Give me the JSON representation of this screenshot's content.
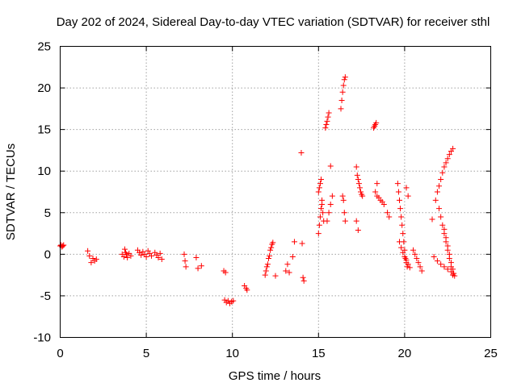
{
  "chart_data": {
    "type": "scatter",
    "title": "Day 202 of 2024, Sidereal Day-to-day VTEC variation (SDTVAR) for receiver sthl",
    "xlabel": "GPS time / hours",
    "ylabel": "SDTVAR / TECUs",
    "xlim": [
      0,
      25
    ],
    "ylim": [
      -10,
      25
    ],
    "x_ticks": [
      0,
      5,
      10,
      15,
      20,
      25
    ],
    "x_tick_labels": [
      "0",
      "5",
      "10",
      "15",
      "20",
      "25"
    ],
    "y_ticks": [
      -10,
      -5,
      0,
      5,
      10,
      15,
      20,
      25
    ],
    "y_tick_labels": [
      "-10",
      "-5",
      "0",
      "5",
      "10",
      "15",
      "20",
      "25"
    ],
    "grid": true,
    "marker": "+",
    "color": "#ff0000",
    "series": [
      {
        "name": "SDTVAR",
        "x": [
          0.0,
          0.05,
          0.1,
          0.15,
          0.2,
          1.6,
          1.7,
          1.8,
          1.9,
          2.0,
          2.1,
          3.6,
          3.7,
          3.75,
          3.8,
          3.85,
          3.9,
          4.0,
          4.1,
          4.5,
          4.6,
          4.7,
          4.8,
          4.9,
          5.0,
          5.1,
          5.2,
          5.3,
          5.5,
          5.6,
          5.7,
          5.8,
          5.9,
          7.2,
          7.25,
          7.3,
          7.9,
          8.0,
          8.2,
          9.5,
          9.6,
          9.55,
          9.65,
          9.75,
          9.85,
          9.95,
          10.05,
          10.7,
          10.8,
          10.85,
          11.9,
          12.0,
          12.1,
          12.2,
          12.3,
          11.95,
          12.05,
          12.15,
          12.25,
          12.35,
          12.5,
          13.1,
          13.2,
          13.3,
          13.5,
          13.6,
          14.0,
          14.05,
          14.1,
          14.15,
          15.0,
          15.05,
          15.1,
          15.15,
          15.2,
          15.25,
          15.3,
          15.0,
          15.05,
          15.1,
          15.15,
          15.2,
          15.4,
          15.45,
          15.5,
          15.55,
          15.6,
          15.7,
          15.5,
          15.6,
          15.7,
          15.8,
          16.3,
          16.35,
          16.4,
          16.45,
          16.5,
          16.55,
          16.4,
          16.45,
          16.5,
          16.55,
          17.2,
          17.25,
          17.3,
          17.35,
          17.4,
          17.45,
          17.5,
          17.55,
          17.2,
          17.3,
          18.2,
          18.25,
          18.3,
          18.35,
          18.4,
          18.3,
          18.4,
          18.5,
          18.6,
          18.7,
          18.8,
          19.0,
          19.1,
          19.6,
          19.65,
          19.7,
          19.75,
          19.8,
          19.85,
          19.9,
          19.95,
          20.0,
          20.05,
          20.1,
          20.15,
          19.7,
          19.8,
          19.9,
          20.0,
          20.1,
          20.2,
          20.3,
          20.1,
          20.2,
          20.5,
          20.6,
          20.7,
          20.8,
          20.9,
          21.0,
          21.6,
          21.8,
          21.9,
          22.0,
          22.1,
          22.2,
          22.3,
          22.4,
          22.5,
          22.6,
          22.7,
          22.8,
          21.7,
          21.9,
          22.1,
          22.3,
          22.5,
          22.7,
          22.8,
          22.0,
          22.1,
          22.2,
          22.3,
          22.4,
          22.5,
          22.6,
          22.7,
          22.3,
          22.4,
          22.5,
          22.6,
          22.7,
          22.8,
          22.85,
          22.9
        ],
        "y": [
          1.0,
          1.1,
          0.9,
          1.0,
          1.1,
          0.4,
          -0.2,
          -1.0,
          -0.5,
          -0.8,
          -0.6,
          0.0,
          -0.3,
          0.6,
          0.2,
          0.0,
          -0.4,
          0.1,
          -0.2,
          0.5,
          0.2,
          -0.1,
          0.3,
          0.0,
          -0.3,
          0.4,
          0.1,
          -0.2,
          0.2,
          -0.1,
          -0.4,
          0.1,
          -0.6,
          0.0,
          -0.8,
          -1.5,
          -0.4,
          -1.7,
          -1.4,
          -2.0,
          -2.2,
          -5.5,
          -5.8,
          -5.6,
          -5.9,
          -5.7,
          -5.6,
          -3.8,
          -4.1,
          -4.3,
          -2.5,
          -1.5,
          -0.5,
          0.5,
          1.2,
          -2.0,
          -1.2,
          -0.2,
          0.8,
          1.4,
          -2.6,
          -2.0,
          -1.2,
          -2.2,
          -0.3,
          1.5,
          12.2,
          1.3,
          -2.8,
          -3.2,
          2.5,
          3.5,
          4.5,
          5.5,
          6.5,
          5.0,
          4.0,
          7.5,
          8.0,
          8.5,
          9.0,
          6.0,
          15.2,
          15.6,
          16.0,
          16.5,
          17.0,
          10.6,
          4.0,
          5.0,
          6.0,
          7.0,
          17.5,
          18.5,
          19.5,
          20.3,
          21.0,
          21.3,
          7.0,
          6.5,
          5.0,
          4.0,
          10.5,
          9.5,
          9.0,
          8.5,
          8.0,
          7.5,
          7.2,
          7.0,
          4.0,
          2.9,
          15.2,
          15.4,
          15.6,
          15.8,
          8.5,
          7.5,
          7.0,
          6.8,
          6.5,
          6.3,
          6.0,
          5.0,
          4.5,
          8.5,
          7.5,
          6.5,
          5.5,
          4.5,
          3.5,
          2.5,
          1.5,
          0.5,
          -0.5,
          -1.0,
          -1.5,
          1.5,
          0.8,
          0.2,
          -0.3,
          -0.7,
          -1.2,
          -1.6,
          8.0,
          7.0,
          0.5,
          0.0,
          -0.5,
          -1.0,
          -1.5,
          -2.0,
          4.2,
          6.5,
          7.5,
          8.2,
          9.0,
          9.8,
          10.5,
          11.0,
          11.5,
          12.0,
          12.4,
          12.7,
          -0.3,
          -0.8,
          -1.2,
          -1.5,
          -1.8,
          -2.1,
          -2.5,
          5.5,
          4.5,
          3.5,
          2.5,
          1.5,
          0.5,
          -0.5,
          -1.5,
          3.0,
          2.0,
          1.0,
          0.0,
          -1.0,
          -1.8,
          -2.3,
          -2.6
        ]
      }
    ]
  }
}
